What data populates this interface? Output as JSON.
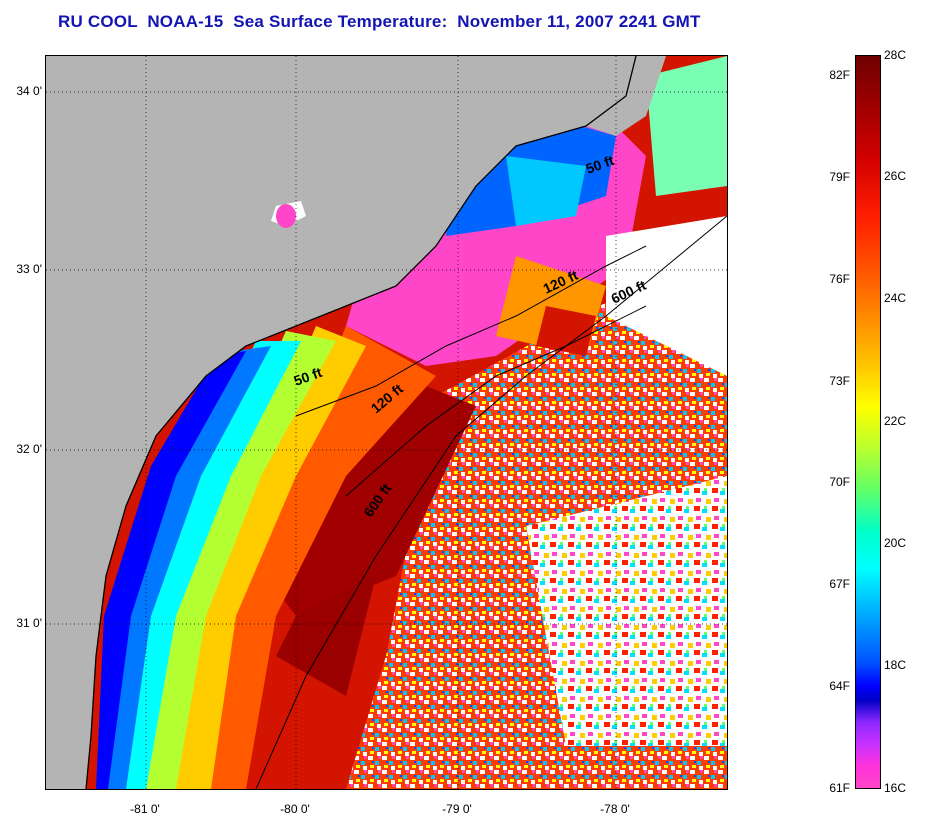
{
  "title": "RU COOL  NOAA-15  Sea Surface Temperature:  November 11, 2007 2241 GMT",
  "lat_labels": [
    "34 0'",
    "33 0'",
    "32 0'",
    "31 0'"
  ],
  "lon_labels": [
    "-81 0'",
    "-80 0'",
    "-79 0'",
    "-78 0'"
  ],
  "contour_labels": {
    "north_50": "50 ft",
    "north_120": "120 ft",
    "north_600": "600 ft",
    "south_50": "50 ft",
    "south_120": "120 ft",
    "south_600": "600 ft"
  },
  "colorbar": {
    "fahrenheit": [
      "82F",
      "79F",
      "76F",
      "73F",
      "70F",
      "67F",
      "64F",
      "61F"
    ],
    "celsius": [
      "28C",
      "26C",
      "24C",
      "22C",
      "20C",
      "18C",
      "16C"
    ]
  },
  "colors": {
    "title": "#1414b4",
    "land": "#b4b4b4",
    "cloud": "#ffffff",
    "warm": "#c80000",
    "cold": "#ff46c8"
  }
}
